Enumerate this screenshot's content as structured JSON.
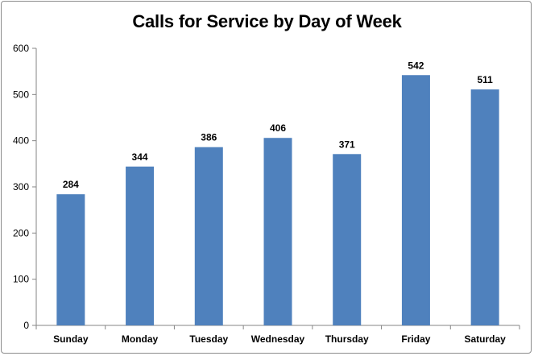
{
  "chart_data": {
    "type": "bar",
    "title": "Calls for Service by Day of Week",
    "xlabel": "",
    "ylabel": "",
    "categories": [
      "Sunday",
      "Monday",
      "Tuesday",
      "Wednesday",
      "Thursday",
      "Friday",
      "Saturday"
    ],
    "values": [
      284,
      344,
      386,
      406,
      371,
      542,
      511
    ],
    "ylim": [
      0,
      600
    ],
    "yticks": [
      0,
      100,
      200,
      300,
      400,
      500,
      600
    ],
    "grid": false,
    "legend": "none",
    "data_labels": true,
    "bar_color": "#4f81bd"
  }
}
